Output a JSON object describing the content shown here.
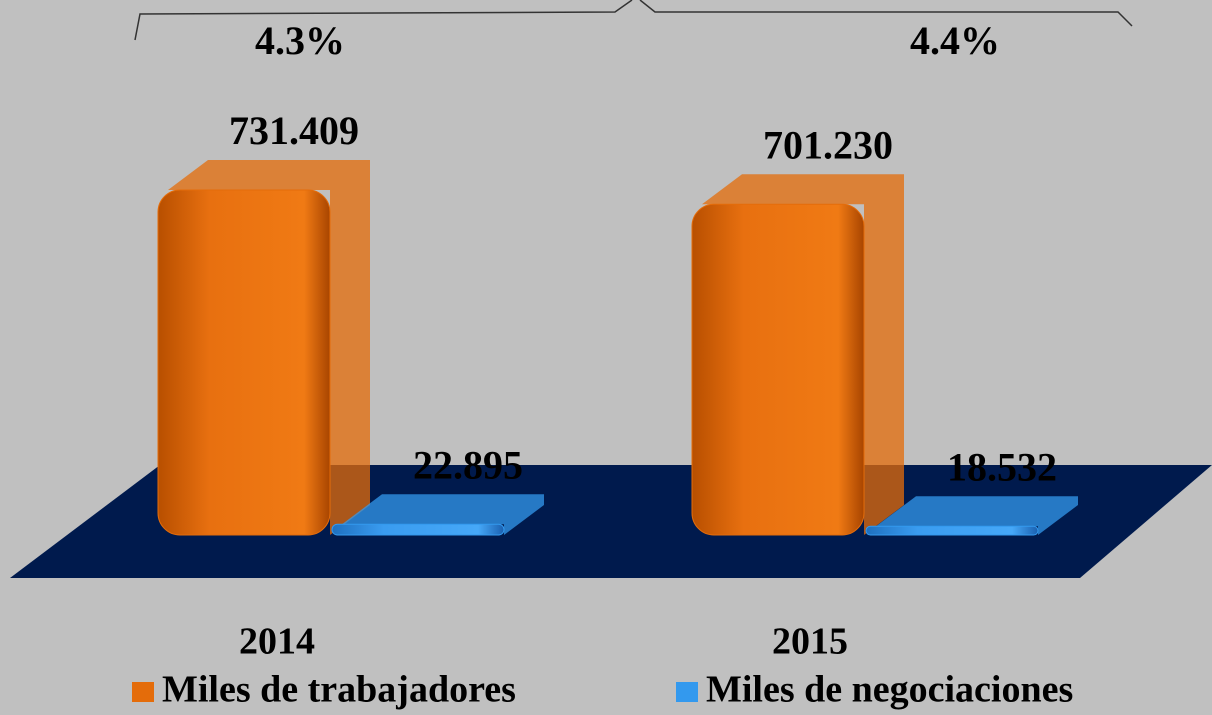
{
  "chart_data": {
    "type": "bar",
    "categories": [
      "2014",
      "2015"
    ],
    "annotations": [
      "4.3%",
      "4.4%"
    ],
    "series": [
      {
        "name": "Miles de trabajadores",
        "color": "#e46c0a",
        "values": [
          731409,
          701230
        ],
        "value_labels": [
          "731.409",
          "701.230"
        ]
      },
      {
        "name": "Miles de negociaciones",
        "color": "#3399ee",
        "values": [
          22895,
          18532
        ],
        "value_labels": [
          "22.895",
          "18.532"
        ]
      }
    ]
  }
}
